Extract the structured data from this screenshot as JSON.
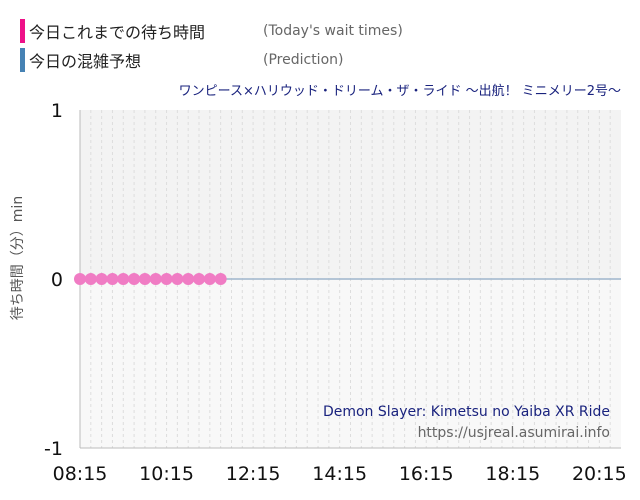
{
  "legend": {
    "today": {
      "label": "今日これまでの待ち時間",
      "sub": "(Today's wait times)"
    },
    "prediction": {
      "label": "今日の混雑予想",
      "sub": "(Prediction)"
    }
  },
  "watermark": {
    "ride": "Demon Slayer: Kimetsu no Yaiba XR Ride",
    "url": "https://usjreal.asumirai.info"
  },
  "colors": {
    "today": "#ee1188",
    "prediction": "#4682b4",
    "points": "#f07cc4"
  },
  "chart_data": {
    "type": "line",
    "title": "ワンピース×ハリウッド・ドリーム・ザ・ライド ～出航！ ミニメリー2号～",
    "xlabel": "",
    "ylabel": "待ち時間（分）min",
    "ylim": [
      -1,
      1
    ],
    "xlim": [
      "08:15",
      "20:45"
    ],
    "x_ticks": [
      "08:15",
      "10:15",
      "12:15",
      "14:15",
      "16:15",
      "18:15",
      "20:15"
    ],
    "y_ticks": [
      1,
      0,
      -1
    ],
    "grid": true,
    "series": [
      {
        "name": "今日これまでの待ち時間",
        "style": "markers",
        "x": [
          "08:15",
          "08:30",
          "08:45",
          "09:00",
          "09:15",
          "09:30",
          "09:45",
          "10:00",
          "10:15",
          "10:30",
          "10:45",
          "11:00",
          "11:15",
          "11:30"
        ],
        "values": [
          0,
          0,
          0,
          0,
          0,
          0,
          0,
          0,
          0,
          0,
          0,
          0,
          0,
          0
        ]
      },
      {
        "name": "今日の混雑予想",
        "style": "line",
        "x": [
          "08:15",
          "20:45"
        ],
        "values": [
          0,
          0
        ]
      }
    ]
  }
}
